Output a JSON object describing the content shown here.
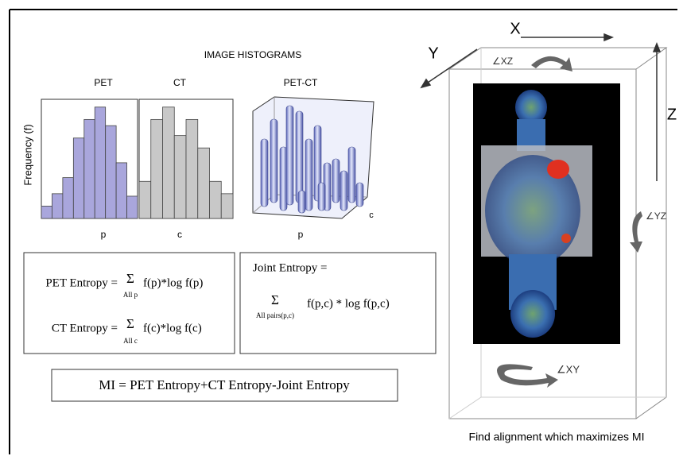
{
  "title": "IMAGE HISTOGRAMS",
  "y_axis_label": "Frequency (f)",
  "histograms": [
    {
      "name": "PET",
      "x_label": "p",
      "color": "#a9a6dc",
      "values": [
        1,
        2,
        3.3,
        6.5,
        8,
        9,
        7.5,
        4.5,
        1.8
      ]
    },
    {
      "name": "CT",
      "x_label": "c",
      "color": "#c8c8c8",
      "values": [
        3,
        8,
        9,
        6.7,
        8,
        5.7,
        3,
        2
      ]
    },
    {
      "name": "PET-CT",
      "x_label": "p",
      "y_label": "c"
    }
  ],
  "formulas": {
    "pet": {
      "lhs": "PET Entropy =",
      "sum": "Σ",
      "under": "All p",
      "rhs": "f(p)*log f(p)"
    },
    "ct": {
      "lhs": "CT Entropy =",
      "sum": "Σ",
      "under": "All c",
      "rhs": "f(c)*log f(c)"
    },
    "joint": {
      "lhs": "Joint Entropy =",
      "sum": "Σ",
      "under": "All pairs(p,c)",
      "rhs": "f(p,c) * log f(p,c)"
    },
    "mi": "MI = PET Entropy+CT Entropy-Joint Entropy"
  },
  "axes": {
    "x": "X",
    "y": "Y",
    "z": "Z"
  },
  "angles": {
    "xz": "∠XZ",
    "yz": "∠YZ",
    "xy": "∠XY"
  },
  "caption": "Find alignment which maximizes MI"
}
